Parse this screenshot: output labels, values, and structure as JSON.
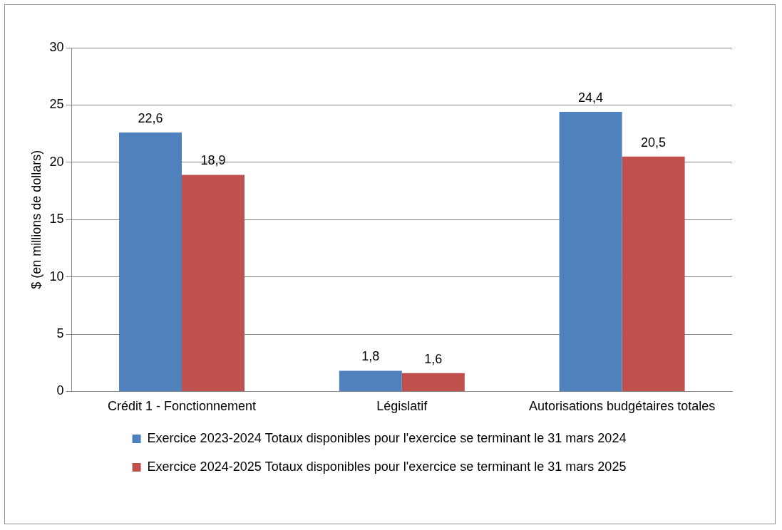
{
  "chart_data": {
    "type": "bar",
    "categories": [
      "Crédit 1 - Fonctionnement",
      "Législatif",
      "Autorisations budgétaires totales"
    ],
    "series": [
      {
        "name": "Exercice 2023-2024 Totaux disponibles pour l'exercice se terminant le 31 mars 2024",
        "color": "#4f81bd",
        "values": [
          22.6,
          1.8,
          24.4
        ],
        "value_labels": [
          "22,6",
          "1,8",
          "24,4"
        ]
      },
      {
        "name": "Exercice 2024-2025 Totaux disponibles pour l'exercice se terminant le 31 mars 2025",
        "color": "#c0504d",
        "values": [
          18.9,
          1.6,
          20.5
        ],
        "value_labels": [
          "18,9",
          "1,6",
          "20,5"
        ]
      }
    ],
    "y_label": "$ (en millions de dollars)",
    "ylim": [
      0,
      30
    ],
    "yticks": [
      0,
      5,
      10,
      15,
      20,
      25,
      30
    ],
    "grid": true,
    "legend": "bottom",
    "data_labels": true
  }
}
